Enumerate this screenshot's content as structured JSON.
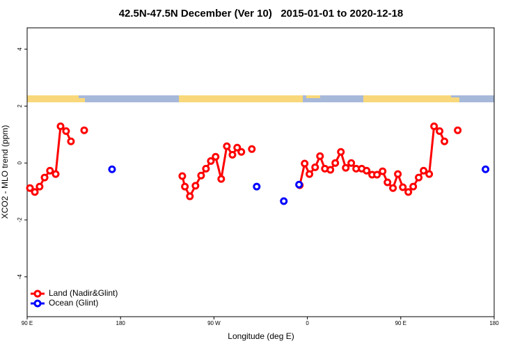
{
  "chart_data": {
    "type": "line",
    "title": "42.5N-47.5N December (Ver 10)   2015-01-01 to 2020-12-18",
    "x_label": "Longitude (deg E)",
    "y_label": "XCO2 - MLO trend (ppm)",
    "xlim": [
      90,
      540
    ],
    "ylim": [
      -5.4,
      4.75
    ],
    "xticks": [
      {
        "value": 90,
        "label": "90 E"
      },
      {
        "value": 180,
        "label": "180"
      },
      {
        "value": 270,
        "label": "90 W"
      },
      {
        "value": 360,
        "label": "0"
      },
      {
        "value": 450,
        "label": "90 E"
      },
      {
        "value": 540,
        "label": "180"
      }
    ],
    "yticks": [
      -4,
      -2,
      0,
      2,
      4
    ],
    "legend": "bottom-left",
    "series": [
      {
        "name": "Land (Nadir&Glint)",
        "color": "#ff0000",
        "connected": true,
        "x": [
          92.7,
          97.4,
          102,
          106.8,
          112,
          117.5,
          122.2,
          127.5,
          132.2,
          null,
          145,
          null,
          239.5,
          242,
          246.8,
          252.2,
          257.6,
          262.3,
          267,
          271.6,
          277,
          282.4,
          287.8,
          292.4,
          296.4,
          null,
          306.5,
          null,
          352.7,
          357.4,
          362,
          367.5,
          372.2,
          376.9,
          382.2,
          386.9,
          392.3,
          397,
          402.3,
          407,
          412.4,
          417.1,
          422.4,
          427.1,
          432.5,
          437.2,
          442.5,
          447.2,
          452,
          457.3,
          462,
          467.3,
          472,
          477.4,
          482.1,
          487.4,
          492.1,
          null,
          504.9
        ],
        "values": [
          -0.88,
          -1.02,
          -0.83,
          -0.51,
          -0.27,
          -0.39,
          1.29,
          1.12,
          0.76,
          null,
          1.15,
          null,
          -0.46,
          -0.83,
          -1.17,
          -0.8,
          -0.44,
          -0.2,
          0.07,
          0.22,
          -0.56,
          0.59,
          0.29,
          0.54,
          0.39,
          null,
          0.49,
          null,
          -0.78,
          -0.02,
          -0.39,
          -0.15,
          0.24,
          -0.2,
          -0.24,
          0,
          0.39,
          -0.17,
          0,
          -0.2,
          -0.2,
          -0.27,
          -0.41,
          -0.41,
          -0.29,
          -0.68,
          -0.88,
          -0.39,
          -0.85,
          -1.02,
          -0.83,
          -0.51,
          -0.27,
          -0.39,
          1.29,
          1.12,
          0.76,
          null,
          1.15
        ]
      },
      {
        "name": "Ocean (Glint)",
        "color": "#0000ff",
        "connected": false,
        "x": [
          171.8,
          311.2,
          337.3,
          352,
          531.7
        ],
        "values": [
          -0.22,
          -0.83,
          -1.34,
          -0.76,
          -0.22
        ]
      }
    ]
  }
}
